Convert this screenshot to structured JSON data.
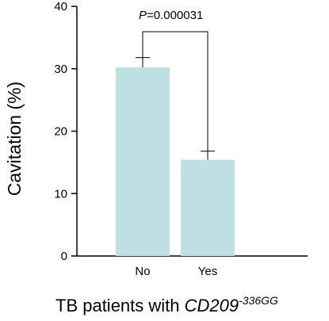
{
  "chart_data": {
    "type": "bar",
    "categories": [
      "No",
      "Yes"
    ],
    "values": [
      30.2,
      15.4
    ],
    "errors": [
      1.6,
      1.4
    ],
    "ylabel": "Cavitation (%)",
    "xlabel_prefix": "TB patients with ",
    "xlabel_gene": "CD209",
    "xlabel_sup": "-336GG",
    "ylim": [
      0,
      40
    ],
    "yticks": [
      "0",
      "10",
      "20",
      "30",
      "40"
    ],
    "grid": false,
    "bar_color": "#bfe0e2",
    "annotation": {
      "p_letter": "P",
      "p_value": "=0.000031"
    }
  }
}
